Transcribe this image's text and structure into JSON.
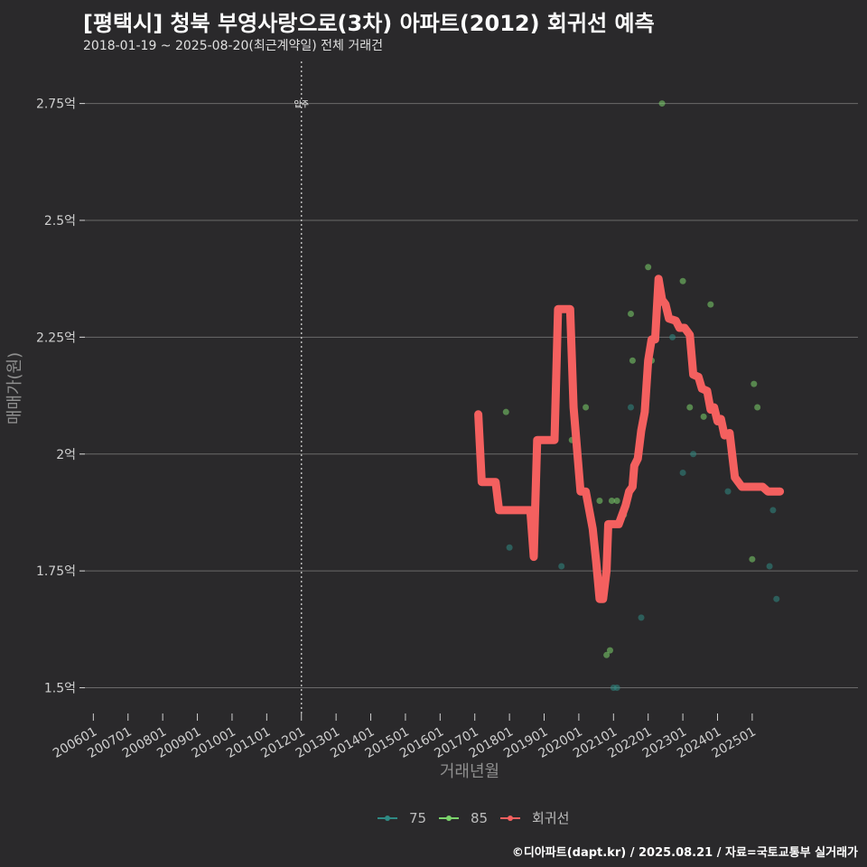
{
  "header": {
    "title": "[평택시] 청북 부영사랑으로(3차) 아파트(2012) 회귀선 예측",
    "subtitle": "2018-01-19 ~ 2025-08-20(최근계약일) 전체 거래건"
  },
  "footer": {
    "caption": "©디아파트(dapt.kr) / 2025.08.21 / 자료=국토교통부 실거래가"
  },
  "chart_data": {
    "type": "scatter",
    "title": "[평택시] 청북 부영사랑으로(3차) 아파트(2012) 회귀선 예측",
    "xlabel": "거래년월",
    "ylabel": "매매가(원)",
    "x_ticks": [
      "200601",
      "200701",
      "200801",
      "200901",
      "201001",
      "201101",
      "201201",
      "201301",
      "201401",
      "201501",
      "201601",
      "201701",
      "201801",
      "201901",
      "202001",
      "202101",
      "202201",
      "202301",
      "202401",
      "202501"
    ],
    "y_ticks": [
      {
        "value": 1.5,
        "label": "1.5억"
      },
      {
        "value": 1.75,
        "label": "1.75억"
      },
      {
        "value": 2.0,
        "label": "2억"
      },
      {
        "value": 2.25,
        "label": "2.25억"
      },
      {
        "value": 2.5,
        "label": "2.5억"
      },
      {
        "value": 2.75,
        "label": "2.75억"
      }
    ],
    "xlim": [
      2005.6,
      2028.05
    ],
    "ylim": [
      1.445,
      2.84
    ],
    "vline": {
      "x": 2012.0,
      "label": "입주"
    },
    "series": [
      {
        "name": "75",
        "color": "#2f8a84",
        "type": "scatter",
        "points": [
          [
            2018.0,
            1.8
          ],
          [
            2019.5,
            1.76
          ],
          [
            2021.0,
            1.5
          ],
          [
            2021.1,
            1.5
          ],
          [
            2021.8,
            1.65
          ],
          [
            2022.7,
            2.25
          ],
          [
            2023.3,
            2.0
          ],
          [
            2024.3,
            1.92
          ],
          [
            2025.5,
            1.76
          ],
          [
            2025.6,
            1.88
          ],
          [
            2025.7,
            1.69
          ],
          [
            2021.5,
            2.1
          ],
          [
            2023.0,
            1.96
          ]
        ]
      },
      {
        "name": "85",
        "color": "#7bd36b",
        "type": "scatter",
        "points": [
          [
            2017.9,
            2.09
          ],
          [
            2019.8,
            2.03
          ],
          [
            2020.2,
            2.1
          ],
          [
            2020.6,
            1.9
          ],
          [
            2020.8,
            1.57
          ],
          [
            2020.95,
            1.9
          ],
          [
            2021.1,
            1.9
          ],
          [
            2021.3,
            1.87
          ],
          [
            2021.5,
            2.3
          ],
          [
            2021.55,
            2.2
          ],
          [
            2022.0,
            2.4
          ],
          [
            2022.1,
            2.2
          ],
          [
            2022.4,
            2.75
          ],
          [
            2023.0,
            2.37
          ],
          [
            2023.2,
            2.1
          ],
          [
            2023.6,
            2.08
          ],
          [
            2023.8,
            2.32
          ],
          [
            2025.05,
            2.15
          ],
          [
            2025.15,
            2.1
          ],
          [
            2025.0,
            1.775
          ],
          [
            2020.9,
            1.58
          ]
        ]
      },
      {
        "name": "회귀선",
        "color": "#f4605f",
        "type": "line",
        "points": [
          [
            2017.1,
            2.085
          ],
          [
            2017.2,
            1.94
          ],
          [
            2017.6,
            1.94
          ],
          [
            2017.7,
            1.88
          ],
          [
            2018.6,
            1.88
          ],
          [
            2018.7,
            1.78
          ],
          [
            2018.8,
            2.03
          ],
          [
            2019.3,
            2.03
          ],
          [
            2019.4,
            2.31
          ],
          [
            2019.75,
            2.31
          ],
          [
            2019.85,
            2.1
          ],
          [
            2020.05,
            1.92
          ],
          [
            2020.2,
            1.92
          ],
          [
            2020.4,
            1.84
          ],
          [
            2020.5,
            1.77
          ],
          [
            2020.6,
            1.69
          ],
          [
            2020.7,
            1.69
          ],
          [
            2020.8,
            1.75
          ],
          [
            2020.85,
            1.85
          ],
          [
            2021.15,
            1.85
          ],
          [
            2021.35,
            1.89
          ],
          [
            2021.45,
            1.92
          ],
          [
            2021.55,
            1.93
          ],
          [
            2021.6,
            1.975
          ],
          [
            2021.7,
            1.99
          ],
          [
            2021.8,
            2.05
          ],
          [
            2021.9,
            2.09
          ],
          [
            2022.0,
            2.2
          ],
          [
            2022.1,
            2.245
          ],
          [
            2022.2,
            2.245
          ],
          [
            2022.3,
            2.375
          ],
          [
            2022.4,
            2.33
          ],
          [
            2022.5,
            2.32
          ],
          [
            2022.6,
            2.29
          ],
          [
            2022.8,
            2.285
          ],
          [
            2022.9,
            2.27
          ],
          [
            2023.05,
            2.27
          ],
          [
            2023.2,
            2.255
          ],
          [
            2023.3,
            2.17
          ],
          [
            2023.45,
            2.165
          ],
          [
            2023.55,
            2.14
          ],
          [
            2023.7,
            2.135
          ],
          [
            2023.8,
            2.095
          ],
          [
            2023.9,
            2.1
          ],
          [
            2024.0,
            2.07
          ],
          [
            2024.1,
            2.075
          ],
          [
            2024.2,
            2.04
          ],
          [
            2024.35,
            2.045
          ],
          [
            2024.5,
            1.95
          ],
          [
            2024.7,
            1.93
          ],
          [
            2025.3,
            1.93
          ],
          [
            2025.45,
            1.92
          ],
          [
            2025.8,
            1.92
          ]
        ]
      }
    ],
    "legend": {
      "position": "bottom",
      "items": [
        "75",
        "85",
        "회귀선"
      ]
    }
  }
}
